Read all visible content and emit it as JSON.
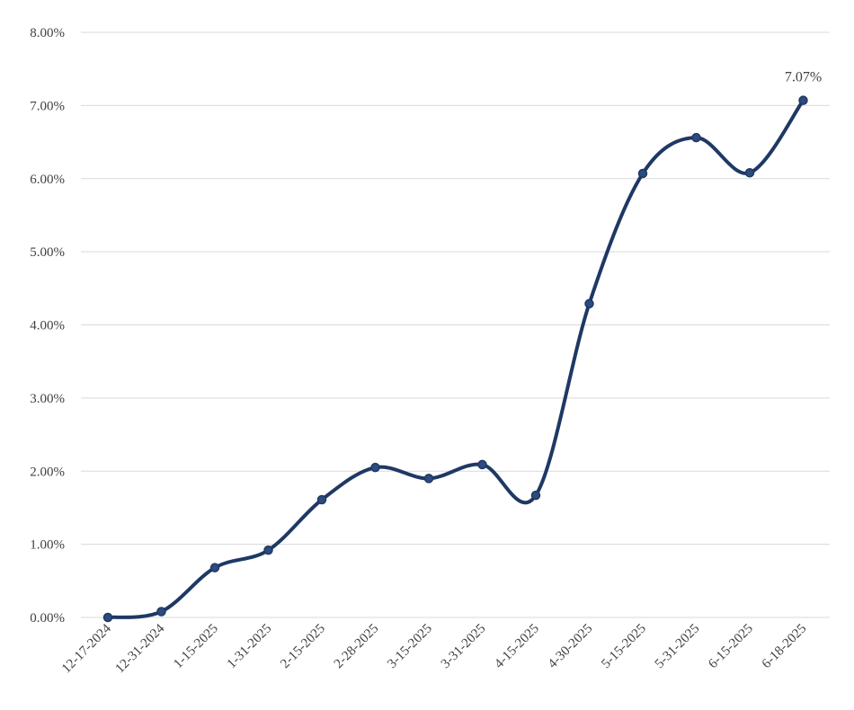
{
  "chart_data": {
    "type": "line",
    "title": "",
    "xlabel": "",
    "ylabel": "",
    "ylim": [
      0,
      0.08
    ],
    "ytick_values": [
      0,
      0.01,
      0.02,
      0.03,
      0.04,
      0.05,
      0.06,
      0.07,
      0.08
    ],
    "ytick_labels": [
      "0.00%",
      "1.00%",
      "2.00%",
      "3.00%",
      "4.00%",
      "5.00%",
      "6.00%",
      "7.00%",
      "8.00%"
    ],
    "grid": true,
    "smoothed": true,
    "categories": [
      "12-17-2024",
      "12-31-2024",
      "1-15-2025",
      "1-31-2025",
      "2-15-2025",
      "2-28-2025",
      "3-15-2025",
      "3-31-2025",
      "4-15-2025",
      "4-30-2025",
      "5-15-2025",
      "5-31-2025",
      "6-15-2025",
      "6-18-2025"
    ],
    "series": [
      {
        "color": "#1f3864",
        "values": [
          0.0,
          0.0008,
          0.0068,
          0.0092,
          0.0161,
          0.0205,
          0.019,
          0.0209,
          0.0167,
          0.0429,
          0.0607,
          0.0656,
          0.0608,
          0.0707
        ]
      }
    ],
    "data_labels": [
      {
        "index": 13,
        "text": "7.07%"
      }
    ]
  }
}
